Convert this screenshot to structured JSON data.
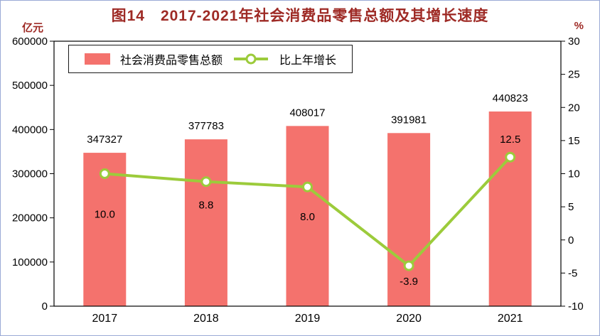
{
  "title": "图14　2017-2021年社会消费品零售总额及其增长速度",
  "left_axis_unit": "亿元",
  "right_axis_unit": "%",
  "legend": {
    "bar_label": "社会消费品零售总额",
    "line_label": "比上年增长"
  },
  "colors": {
    "bar": "#F4726D",
    "line": "#9CCB3B",
    "title": "#9E2A25",
    "axis_text": "#000000",
    "plot_border": "#000000"
  },
  "chart_data": {
    "type": "bar+line",
    "categories": [
      "2017",
      "2018",
      "2019",
      "2020",
      "2021"
    ],
    "series": [
      {
        "name": "社会消费品零售总额",
        "type": "bar",
        "axis": "left",
        "values": [
          347327,
          377783,
          408017,
          391981,
          440823
        ],
        "labels": [
          "347327",
          "377783",
          "408017",
          "391981",
          "440823"
        ]
      },
      {
        "name": "比上年增长",
        "type": "line",
        "axis": "right",
        "values": [
          10.0,
          8.8,
          8.0,
          -3.9,
          12.5
        ],
        "labels": [
          "10.0",
          "8.8",
          "8.0",
          "-3.9",
          "12.5"
        ]
      }
    ],
    "left_axis": {
      "min": 0,
      "max": 600000,
      "step": 100000,
      "unit": "亿元"
    },
    "right_axis": {
      "min": -10,
      "max": 30,
      "step": 5,
      "unit": "%"
    },
    "grid": false,
    "legend_position": "top-left-inside",
    "growth_label_offsets": [
      62,
      38,
      47,
      27,
      -20
    ]
  }
}
